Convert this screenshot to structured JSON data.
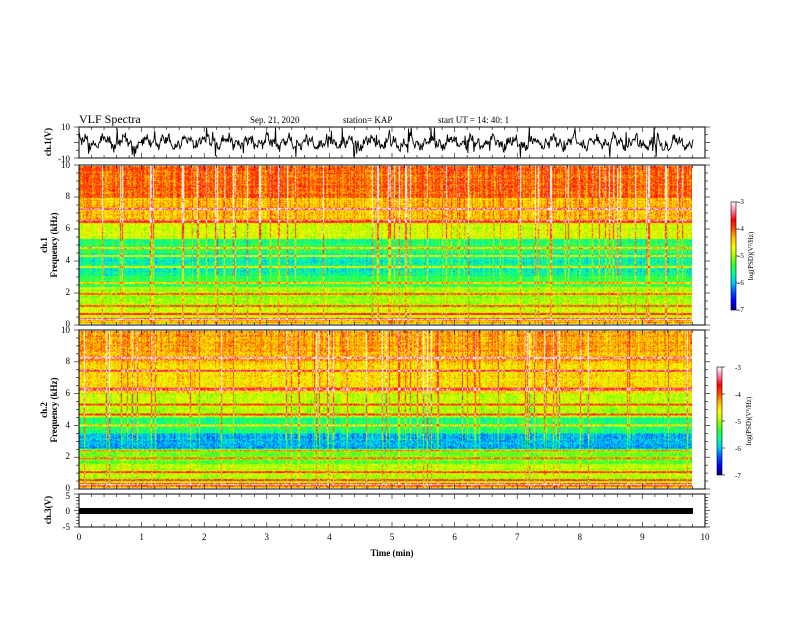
{
  "header": {
    "title": "VLF Spectra",
    "date": "Sep. 21, 2020",
    "station": "station= KAP",
    "start": "start  UT =   14: 40: 1"
  },
  "colors": {
    "spectrogram_palette": [
      "#000080",
      "#0000ff",
      "#0050ff",
      "#00c8ff",
      "#00ffa0",
      "#30ff30",
      "#a0ff00",
      "#ffff00",
      "#ffc000",
      "#ff5000",
      "#ff0000",
      "#ff80a0",
      "#ffffff"
    ]
  },
  "chart_data": [
    {
      "type": "line",
      "name": "ch1-waveform",
      "ylabel": "ch.1(V)",
      "ylim": [
        -10,
        10
      ],
      "yticks": [
        "10",
        "-10"
      ],
      "xlim": [
        0,
        10
      ],
      "description": "noisy waveform fluctuating roughly between -7 and 7 V across the full record"
    },
    {
      "type": "heatmap",
      "name": "ch1-spectrogram",
      "ylabel_line1": "ch.1",
      "ylabel_line2": "Frequency (kHz)",
      "ylim": [
        0,
        10
      ],
      "yticks": [
        "0",
        "2",
        "4",
        "6",
        "8",
        "10"
      ],
      "xlim": [
        0,
        9.85
      ],
      "colorbar": {
        "label": "log(PSD)(V²/Hz)",
        "range": [
          -7,
          -3
        ],
        "ticks": [
          "-3",
          "-4",
          "-5",
          "-6",
          "-7"
        ]
      }
    },
    {
      "type": "heatmap",
      "name": "ch2-spectrogram",
      "ylabel_line1": "ch.2",
      "ylabel_line2": "Frequency (kHz)",
      "ylim": [
        0,
        10
      ],
      "yticks": [
        "0",
        "2",
        "4",
        "6",
        "8",
        "10"
      ],
      "xlim": [
        0,
        9.85
      ],
      "colorbar": {
        "label": "log(PSD)(V²/Hz)",
        "range": [
          -7,
          -3
        ],
        "ticks": [
          "-3",
          "-4",
          "-5",
          "-6",
          "-7"
        ]
      }
    },
    {
      "type": "line",
      "name": "ch3-waveform",
      "ylabel": "ch.3(V)",
      "ylim": [
        -5,
        5
      ],
      "yticks": [
        "5",
        "0",
        "-5"
      ],
      "xlim": [
        0,
        10
      ],
      "xlabel": "Time (min)",
      "xticks": [
        "0",
        "1",
        "2",
        "3",
        "4",
        "5",
        "6",
        "7",
        "8",
        "9",
        "10"
      ],
      "description": "thick constant band near 0 V spanning 0 to 9.85 min"
    }
  ]
}
